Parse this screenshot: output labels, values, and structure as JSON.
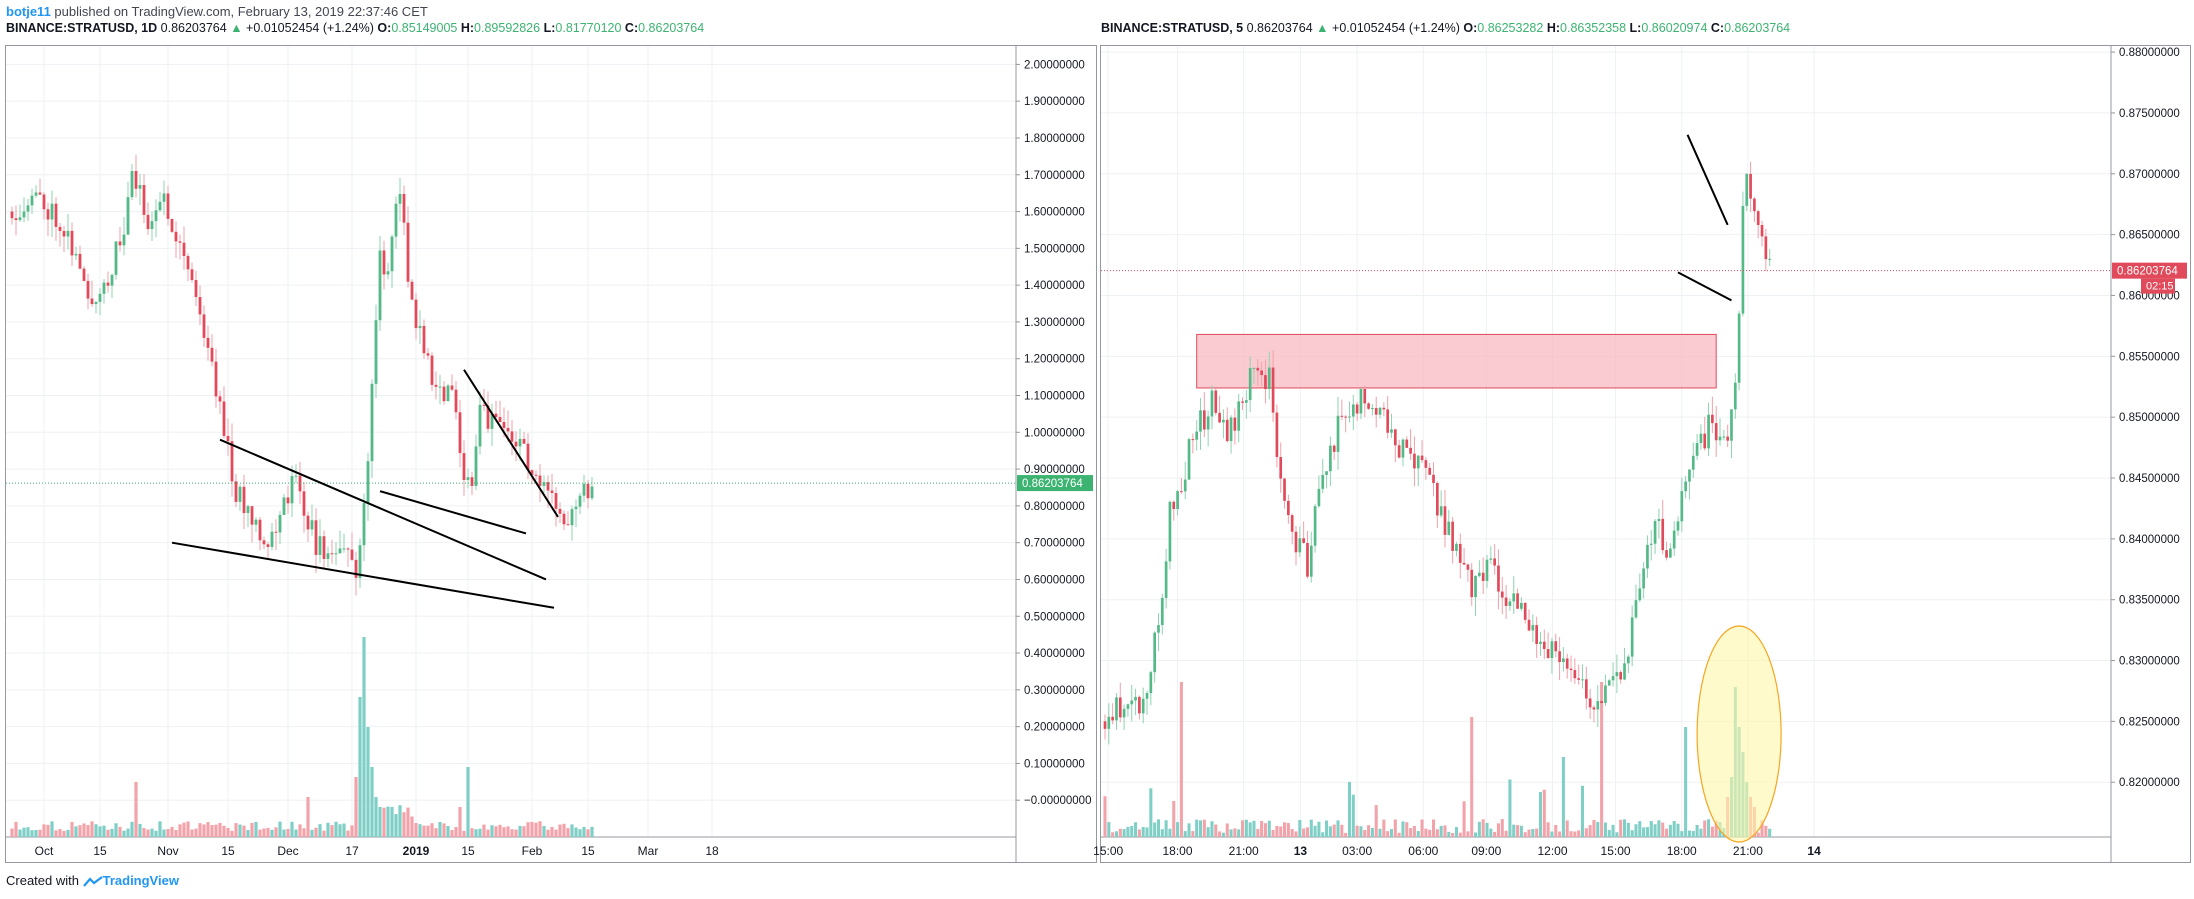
{
  "header": {
    "user": "botje11",
    "published_text": "published on TradingView.com, February 13, 2019 22:37:46 CET"
  },
  "left_header": {
    "symbol": "BINANCE:STRATUSD, 1D",
    "last": "0.86203764",
    "change": "+0.01052454 (+1.24%)",
    "o_label": "O:",
    "o": "0.85149005",
    "h_label": "H:",
    "h": "0.89592826",
    "l_label": "L:",
    "l": "0.81770120",
    "c_label": "C:",
    "c": "0.86203764"
  },
  "right_header": {
    "symbol": "BINANCE:STRATUSD, 5",
    "last": "0.86203764",
    "change": "+0.01052454 (+1.24%)",
    "o_label": "O:",
    "o": "0.86253282",
    "h_label": "H:",
    "h": "0.86352358",
    "l_label": "L:",
    "l": "0.86020974",
    "c_label": "C:",
    "c": "0.86203764"
  },
  "footer": {
    "created_with": "Created with",
    "brand": "TradingView"
  },
  "colors": {
    "up": "#26a69a",
    "up_body": "#53b987",
    "down": "#e04a5a",
    "grid": "#eef1f4",
    "zone_fill": "#f8b7bd",
    "zone_stroke": "#e04a5a",
    "highlight_fill": "#fff7a8",
    "highlight_stroke": "#f5a623"
  },
  "chart_data": [
    {
      "type": "candlestick",
      "name": "daily",
      "ylim": [
        -0.1,
        2.05
      ],
      "y_ticks": [
        "2.00000000",
        "1.90000000",
        "1.80000000",
        "1.70000000",
        "1.60000000",
        "1.50000000",
        "1.40000000",
        "1.30000000",
        "1.20000000",
        "1.10000000",
        "1.00000000",
        "0.90000000",
        "0.80000000",
        "0.70000000",
        "0.60000000",
        "0.50000000",
        "0.40000000",
        "0.30000000",
        "0.20000000",
        "0.10000000",
        "−0.00000000"
      ],
      "x_ticks": [
        "Oct",
        "15",
        "Nov",
        "15",
        "Dec",
        "17",
        "2019",
        "15",
        "Feb",
        "15",
        "Mar",
        "18"
      ],
      "x_tick_bold": [
        false,
        false,
        false,
        false,
        false,
        false,
        true,
        false,
        false,
        false,
        false,
        false
      ],
      "last_price_label": "0.86203764",
      "last_price": 0.862,
      "trendlines": [
        {
          "x": [
            52.0,
            133.5
          ],
          "y": [
            0.98,
            0.6
          ]
        },
        {
          "x": [
            40.0,
            135.5
          ],
          "y": [
            0.7,
            0.523
          ]
        },
        {
          "x": [
            113.0,
            136.5
          ],
          "y": [
            1.17,
            0.77
          ]
        },
        {
          "x": [
            92.0,
            128.5
          ],
          "y": [
            0.84,
            0.725
          ]
        }
      ]
    },
    {
      "type": "candlestick",
      "name": "5min",
      "ylim": [
        0.8155,
        0.8805
      ],
      "y_ticks": [
        "0.88000000",
        "0.87500000",
        "0.87000000",
        "0.86500000",
        "0.86000000",
        "0.85500000",
        "0.85000000",
        "0.84500000",
        "0.84000000",
        "0.83500000",
        "0.83000000",
        "0.82500000",
        "0.82000000"
      ],
      "x_ticks": [
        "15:00",
        "18:00",
        "21:00",
        "13",
        "03:00",
        "06:00",
        "09:00",
        "12:00",
        "15:00",
        "18:00",
        "21:00",
        "14"
      ],
      "x_tick_bold": [
        false,
        false,
        false,
        true,
        false,
        false,
        false,
        false,
        false,
        false,
        false,
        true
      ],
      "last_price_label": "0.86203764",
      "countdown": "02:15",
      "last_price": 0.86204,
      "zone": {
        "from_bar": 24,
        "to_bar": 160,
        "y_top": 0.8568,
        "y_bottom": 0.8524
      },
      "trendlines": [
        {
          "x": [
            152.5,
            163.0
          ],
          "y": [
            0.8732,
            0.8658
          ]
        },
        {
          "x": [
            150.0,
            164.0
          ],
          "y": [
            0.8619,
            0.8596
          ]
        }
      ]
    }
  ]
}
